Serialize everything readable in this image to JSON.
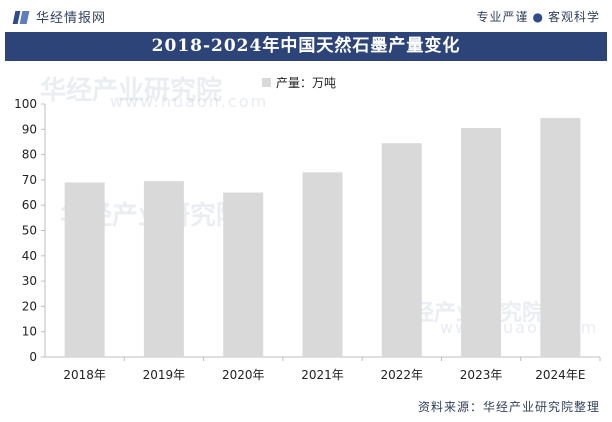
{
  "header": {
    "brand": "华经情报网",
    "slogan_left": "专业严谨",
    "slogan_right": "客观科学"
  },
  "watermark": {
    "text": "华经产业研究院",
    "url": "www.huaon.com"
  },
  "footer": {
    "source": "资料来源：华经产业研究院整理"
  },
  "colors": {
    "title_bg": "#2d4478",
    "bar": "#d9d9d9"
  },
  "chart_data": {
    "type": "bar",
    "title": "2018-2024年中国天然石墨产量变化",
    "categories": [
      "2018年",
      "2019年",
      "2020年",
      "2021年",
      "2022年",
      "2023年",
      "2024年E"
    ],
    "series": [
      {
        "name": "产量：万吨",
        "values": [
          69,
          69.5,
          65,
          73,
          84.5,
          90.5,
          94.5
        ]
      }
    ],
    "ylim": [
      0,
      100
    ],
    "yticks": [
      0,
      10,
      20,
      30,
      40,
      50,
      60,
      70,
      80,
      90,
      100
    ],
    "xlabel": "",
    "ylabel": "",
    "grid": false,
    "legend": "top-center"
  }
}
